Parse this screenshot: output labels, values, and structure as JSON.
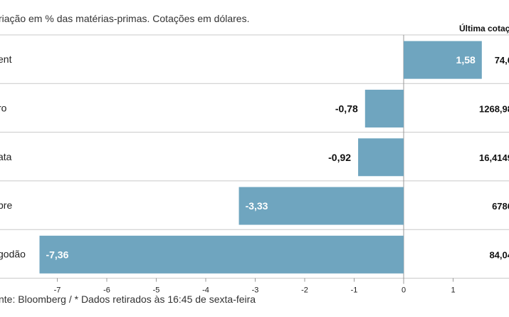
{
  "header": {
    "subtitle": "riação em % das matérias-primas. Cotações em dólares.",
    "last_quote_label": "Última cotaç"
  },
  "footer": {
    "source": "nte: Bloomberg / * Dados retirados às 16:45 de sexta-feira"
  },
  "colors": {
    "bar": "#6fa5bf",
    "grid": "#c9c9c9"
  },
  "chart_data": {
    "type": "bar",
    "orientation": "horizontal",
    "categories": [
      "ent",
      "ro",
      "ata",
      "bre",
      "godão"
    ],
    "values": [
      1.58,
      -0.78,
      -0.92,
      -3.33,
      -7.36
    ],
    "value_labels": [
      "1,58",
      "-0,78",
      "-0,92",
      "-3,33",
      "-7,36"
    ],
    "last_quotes": [
      "74,6",
      "1268,98",
      "16,4149",
      "6786",
      "84,04"
    ],
    "xlim": [
      -8,
      2
    ],
    "xticks": [
      -7,
      -6,
      -5,
      -4,
      -3,
      -2,
      -1,
      0,
      1
    ],
    "xtick_labels": [
      "-7",
      "-6",
      "-5",
      "-4",
      "-3",
      "-2",
      "-1",
      "0",
      "1"
    ],
    "grid": "horizontal separators"
  }
}
